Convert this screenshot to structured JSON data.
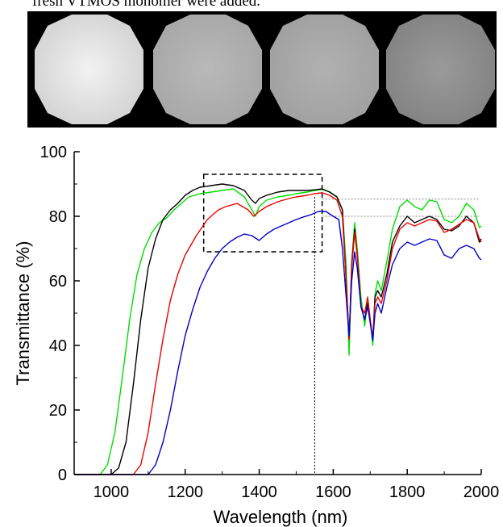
{
  "caption": "fresh VTMOS monomer were added.",
  "photos": {
    "count": 4,
    "center_colors": [
      "#f2f2f2",
      "#b9b9b9",
      "#b1b1b1",
      "#9a9a9a"
    ],
    "edge_colors": [
      "#d6d6d6",
      "#a9a9a9",
      "#a2a2a2",
      "#858585"
    ]
  },
  "chart_data": {
    "type": "line",
    "title": "",
    "xlabel": "Wavelength (nm)",
    "ylabel": "Transmittance (%)",
    "xlim": [
      900,
      2000
    ],
    "ylim": [
      0,
      100
    ],
    "xticks": [
      1000,
      1200,
      1400,
      1600,
      1800,
      2000
    ],
    "yticks": [
      0,
      20,
      40,
      60,
      80,
      100
    ],
    "reference_lines": {
      "horizontal_y": [
        85.3,
        80
      ],
      "vertical_x": [
        1550
      ],
      "zoom_box": {
        "x": [
          1250,
          1570
        ],
        "y": [
          69,
          93
        ]
      }
    },
    "series": [
      {
        "color": "#00dd00",
        "points": [
          [
            900,
            0
          ],
          [
            970,
            0
          ],
          [
            990,
            3
          ],
          [
            1010,
            13
          ],
          [
            1030,
            30
          ],
          [
            1050,
            48
          ],
          [
            1070,
            62
          ],
          [
            1090,
            70
          ],
          [
            1110,
            75
          ],
          [
            1130,
            78
          ],
          [
            1150,
            79.5
          ],
          [
            1170,
            82
          ],
          [
            1190,
            84
          ],
          [
            1210,
            86
          ],
          [
            1240,
            87
          ],
          [
            1270,
            87.5
          ],
          [
            1300,
            88
          ],
          [
            1330,
            88.5
          ],
          [
            1360,
            86
          ],
          [
            1380,
            82
          ],
          [
            1390,
            80
          ],
          [
            1400,
            83
          ],
          [
            1420,
            85
          ],
          [
            1450,
            86
          ],
          [
            1480,
            86.5
          ],
          [
            1500,
            87
          ],
          [
            1530,
            87.5
          ],
          [
            1550,
            88
          ],
          [
            1570,
            88.3
          ],
          [
            1590,
            87.6
          ],
          [
            1610,
            86
          ],
          [
            1625,
            82
          ],
          [
            1635,
            65
          ],
          [
            1643,
            37
          ],
          [
            1650,
            66
          ],
          [
            1658,
            78
          ],
          [
            1665,
            70
          ],
          [
            1675,
            55
          ],
          [
            1685,
            46
          ],
          [
            1693,
            54
          ],
          [
            1700,
            48
          ],
          [
            1707,
            40
          ],
          [
            1713,
            56
          ],
          [
            1720,
            60
          ],
          [
            1730,
            57
          ],
          [
            1745,
            66
          ],
          [
            1760,
            76
          ],
          [
            1780,
            83
          ],
          [
            1800,
            85
          ],
          [
            1820,
            83
          ],
          [
            1840,
            82
          ],
          [
            1860,
            85
          ],
          [
            1880,
            84.5
          ],
          [
            1900,
            79
          ],
          [
            1920,
            78
          ],
          [
            1940,
            80
          ],
          [
            1960,
            84
          ],
          [
            1980,
            82
          ],
          [
            1995,
            76.5
          ],
          [
            2000,
            77
          ]
        ]
      },
      {
        "color": "#000000",
        "points": [
          [
            900,
            0
          ],
          [
            1000,
            0
          ],
          [
            1020,
            2
          ],
          [
            1040,
            10
          ],
          [
            1060,
            28
          ],
          [
            1080,
            48
          ],
          [
            1100,
            64
          ],
          [
            1120,
            73
          ],
          [
            1140,
            79
          ],
          [
            1160,
            82
          ],
          [
            1180,
            84
          ],
          [
            1200,
            86.5
          ],
          [
            1220,
            88
          ],
          [
            1240,
            89
          ],
          [
            1270,
            89.5
          ],
          [
            1300,
            90
          ],
          [
            1330,
            89.5
          ],
          [
            1360,
            88
          ],
          [
            1380,
            85
          ],
          [
            1390,
            84
          ],
          [
            1400,
            85.5
          ],
          [
            1420,
            86.5
          ],
          [
            1450,
            87.5
          ],
          [
            1480,
            88
          ],
          [
            1500,
            88
          ],
          [
            1530,
            88
          ],
          [
            1550,
            88.2
          ],
          [
            1570,
            88.5
          ],
          [
            1590,
            87.5
          ],
          [
            1610,
            86
          ],
          [
            1625,
            82
          ],
          [
            1635,
            60
          ],
          [
            1643,
            42
          ],
          [
            1650,
            65
          ],
          [
            1658,
            76
          ],
          [
            1665,
            68
          ],
          [
            1675,
            52
          ],
          [
            1685,
            48
          ],
          [
            1693,
            53
          ],
          [
            1700,
            47
          ],
          [
            1707,
            42
          ],
          [
            1713,
            55
          ],
          [
            1720,
            57
          ],
          [
            1730,
            55
          ],
          [
            1745,
            62
          ],
          [
            1760,
            72
          ],
          [
            1780,
            77
          ],
          [
            1800,
            80
          ],
          [
            1820,
            78
          ],
          [
            1840,
            79
          ],
          [
            1860,
            80
          ],
          [
            1880,
            79
          ],
          [
            1900,
            76
          ],
          [
            1920,
            75.5
          ],
          [
            1940,
            77
          ],
          [
            1960,
            80
          ],
          [
            1980,
            78
          ],
          [
            1995,
            72
          ],
          [
            2000,
            73
          ]
        ]
      },
      {
        "color": "#ee0000",
        "points": [
          [
            900,
            0
          ],
          [
            1060,
            0
          ],
          [
            1080,
            3
          ],
          [
            1100,
            13
          ],
          [
            1120,
            28
          ],
          [
            1140,
            42
          ],
          [
            1160,
            54
          ],
          [
            1180,
            62
          ],
          [
            1200,
            68
          ],
          [
            1230,
            74
          ],
          [
            1260,
            79
          ],
          [
            1290,
            82
          ],
          [
            1310,
            83
          ],
          [
            1340,
            84
          ],
          [
            1370,
            82
          ],
          [
            1385,
            80
          ],
          [
            1400,
            81.5
          ],
          [
            1420,
            83
          ],
          [
            1450,
            84.5
          ],
          [
            1480,
            85.5
          ],
          [
            1500,
            86
          ],
          [
            1530,
            86.5
          ],
          [
            1550,
            87
          ],
          [
            1570,
            87.3
          ],
          [
            1590,
            86.5
          ],
          [
            1610,
            85
          ],
          [
            1625,
            80
          ],
          [
            1635,
            60
          ],
          [
            1643,
            42
          ],
          [
            1650,
            64
          ],
          [
            1658,
            75
          ],
          [
            1665,
            68
          ],
          [
            1675,
            52
          ],
          [
            1685,
            50
          ],
          [
            1693,
            55
          ],
          [
            1700,
            48
          ],
          [
            1707,
            42
          ],
          [
            1713,
            53
          ],
          [
            1720,
            55
          ],
          [
            1730,
            53
          ],
          [
            1745,
            60
          ],
          [
            1760,
            70
          ],
          [
            1780,
            76
          ],
          [
            1800,
            78
          ],
          [
            1820,
            77
          ],
          [
            1840,
            78
          ],
          [
            1860,
            79
          ],
          [
            1880,
            78.5
          ],
          [
            1900,
            75
          ],
          [
            1920,
            76
          ],
          [
            1940,
            77.5
          ],
          [
            1960,
            79
          ],
          [
            1980,
            78
          ],
          [
            1995,
            73
          ],
          [
            2000,
            72
          ]
        ]
      },
      {
        "color": "#0000cc",
        "points": [
          [
            900,
            0
          ],
          [
            1100,
            0
          ],
          [
            1120,
            3
          ],
          [
            1140,
            10
          ],
          [
            1160,
            20
          ],
          [
            1180,
            32
          ],
          [
            1200,
            43
          ],
          [
            1220,
            51
          ],
          [
            1240,
            58
          ],
          [
            1260,
            63
          ],
          [
            1280,
            67
          ],
          [
            1300,
            70
          ],
          [
            1320,
            72
          ],
          [
            1340,
            73.5
          ],
          [
            1360,
            74.5
          ],
          [
            1380,
            74
          ],
          [
            1400,
            72.5
          ],
          [
            1420,
            74.5
          ],
          [
            1440,
            76
          ],
          [
            1460,
            77
          ],
          [
            1480,
            78
          ],
          [
            1500,
            79
          ],
          [
            1520,
            79.8
          ],
          [
            1540,
            80.5
          ],
          [
            1560,
            81.5
          ],
          [
            1580,
            81.5
          ],
          [
            1600,
            80
          ],
          [
            1615,
            79
          ],
          [
            1625,
            70
          ],
          [
            1635,
            55
          ],
          [
            1643,
            43
          ],
          [
            1650,
            60
          ],
          [
            1658,
            69
          ],
          [
            1665,
            64
          ],
          [
            1675,
            52
          ],
          [
            1685,
            48
          ],
          [
            1693,
            52
          ],
          [
            1700,
            47
          ],
          [
            1707,
            41.5
          ],
          [
            1713,
            50
          ],
          [
            1720,
            53
          ],
          [
            1730,
            50
          ],
          [
            1745,
            58
          ],
          [
            1760,
            65
          ],
          [
            1780,
            70
          ],
          [
            1800,
            72
          ],
          [
            1820,
            71
          ],
          [
            1840,
            72
          ],
          [
            1860,
            73
          ],
          [
            1880,
            72.5
          ],
          [
            1900,
            68
          ],
          [
            1920,
            67
          ],
          [
            1940,
            70
          ],
          [
            1960,
            71
          ],
          [
            1980,
            70
          ],
          [
            1995,
            67
          ],
          [
            2000,
            66.5
          ]
        ]
      }
    ]
  }
}
